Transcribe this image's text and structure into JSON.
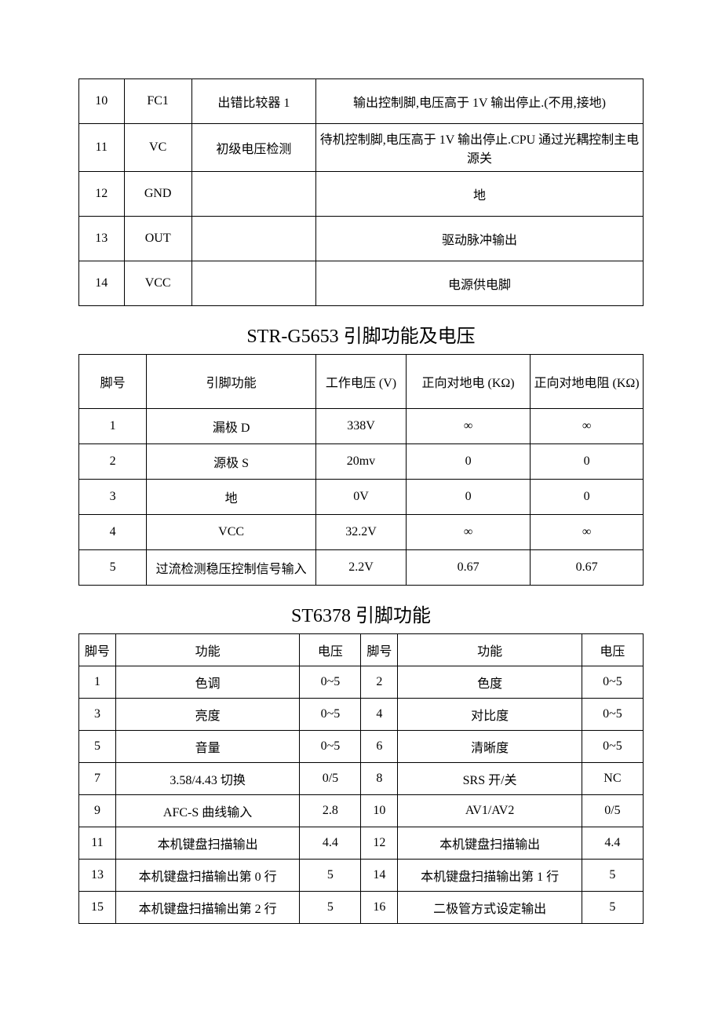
{
  "table1": {
    "columns_width_pct": [
      8,
      12,
      22,
      58
    ],
    "rows": [
      {
        "pin": "10",
        "sym": "FC1",
        "name": "出错比较器 1",
        "desc": "输出控制脚,电压高于 1V 输出停止.(不用,接地)"
      },
      {
        "pin": "11",
        "sym": "VC",
        "name": "初级电压检测",
        "desc": "待机控制脚,电压高于 1V 输出停止.CPU 通过光耦控制主电源关"
      },
      {
        "pin": "12",
        "sym": "GND",
        "name": "",
        "desc": "地"
      },
      {
        "pin": "13",
        "sym": "OUT",
        "name": "",
        "desc": "驱动脉冲输出"
      },
      {
        "pin": "14",
        "sym": "VCC",
        "name": "",
        "desc": "电源供电脚"
      }
    ]
  },
  "table2": {
    "title": "STR-G5653 引脚功能及电压",
    "columns_width_pct": [
      12,
      30,
      16,
      22,
      20
    ],
    "headers": [
      "脚号",
      "引脚功能",
      "工作电压 (V)",
      "正向对地电 (KΩ)",
      "正向对地电阻 (KΩ)"
    ],
    "rows": [
      [
        "1",
        "漏极 D",
        "338V",
        "∞",
        "∞"
      ],
      [
        "2",
        "源极 S",
        "20mv",
        "0",
        "0"
      ],
      [
        "3",
        "地",
        "0V",
        "0",
        "0"
      ],
      [
        "4",
        "VCC",
        "32.2V",
        "∞",
        "∞"
      ],
      [
        "5",
        "过流检测稳压控制信号输入",
        "2.2V",
        "0.67",
        "0.67"
      ]
    ]
  },
  "table3": {
    "title": "ST6378 引脚功能",
    "columns_width_pct": [
      6,
      28,
      10,
      6,
      28,
      10
    ],
    "headers": [
      "脚号",
      "功能",
      "电压",
      "脚号",
      "功能",
      "电压"
    ],
    "rows": [
      [
        "1",
        "色调",
        "0~5",
        "2",
        "色度",
        "0~5"
      ],
      [
        "3",
        "亮度",
        "0~5",
        "4",
        "对比度",
        "0~5"
      ],
      [
        "5",
        "音量",
        "0~5",
        "6",
        "清晰度",
        "0~5"
      ],
      [
        "7",
        "3.58/4.43 切换",
        "0/5",
        "8",
        "SRS 开/关",
        "NC"
      ],
      [
        "9",
        "AFC-S 曲线输入",
        "2.8",
        "10",
        "AV1/AV2",
        "0/5"
      ],
      [
        "11",
        "本机键盘扫描输出",
        "4.4",
        "12",
        "本机键盘扫描输出",
        "4.4"
      ],
      [
        "13",
        "本机键盘扫描输出第 0 行",
        "5",
        "14",
        "本机键盘扫描输出第 1 行",
        "5"
      ],
      [
        "15",
        "本机键盘扫描输出第 2 行",
        "5",
        "16",
        "二极管方式设定输出",
        "5"
      ]
    ]
  }
}
